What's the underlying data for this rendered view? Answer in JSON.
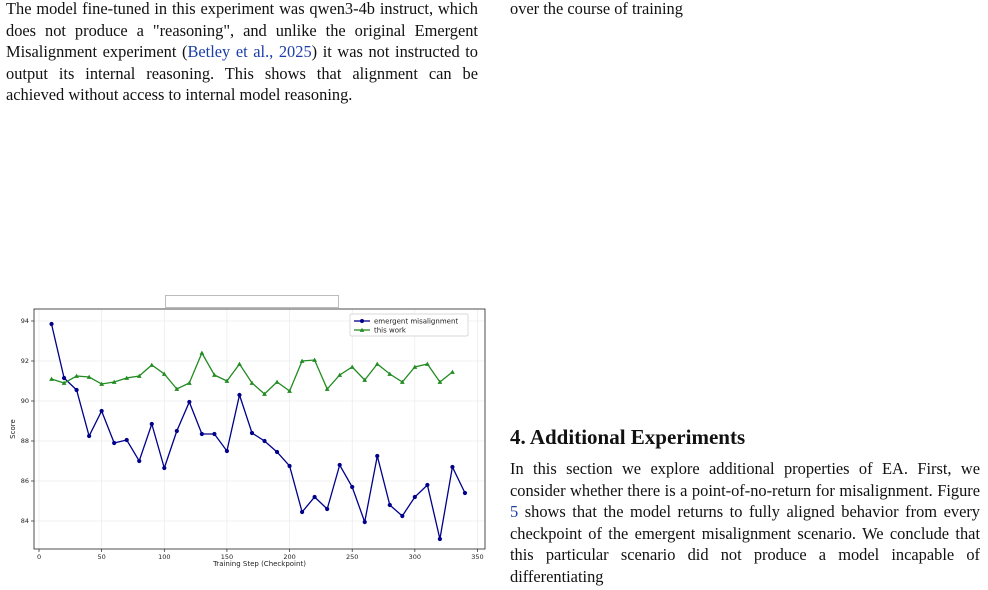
{
  "left_paragraph": {
    "part1": "The model fine-tuned in this experiment was qwen3-4b instruct, which does not produce a \"reasoning\", and unlike the original Emergent Misalignment experiment (",
    "citation": "Betley et al., 2025",
    "part2": ") it was not instructed to output its internal reasoning. This shows that alignment can be achieved without access to internal model reasoning."
  },
  "right_fragment": "over the course of training",
  "section": {
    "title": "4. Additional Experiments",
    "paragraph_part1": "In this section we explore additional properties of EA. First, we consider whether there is a point-of-no-return for misalignment. Figure ",
    "figure_ref": "5",
    "paragraph_part2": " shows that the model returns to fully aligned behavior from every checkpoint of the emergent misalignment scenario. We conclude that this particular scenario did not produce a model incapable of differentiating"
  },
  "caption_fragment": "",
  "chart_data": {
    "type": "line",
    "title": "",
    "xlabel": "Training Step (Checkpoint)",
    "ylabel": "Score",
    "xlim": [
      -4,
      356
    ],
    "ylim": [
      82.6,
      94.6
    ],
    "xticks": [
      0,
      50,
      100,
      150,
      200,
      250,
      300,
      350
    ],
    "yticks": [
      84,
      86,
      88,
      90,
      92,
      94
    ],
    "grid": true,
    "legend_position": "top-right",
    "series": [
      {
        "name": "emergent misalignment",
        "color": "#00008b",
        "marker": "circle",
        "x": [
          10,
          20,
          30,
          40,
          50,
          60,
          70,
          80,
          90,
          100,
          110,
          120,
          130,
          140,
          150,
          160,
          170,
          180,
          190,
          200,
          210,
          220,
          230,
          240,
          250,
          260,
          270,
          280,
          290,
          300,
          310,
          320,
          330,
          340
        ],
        "y": [
          93.85,
          91.15,
          90.55,
          88.25,
          89.5,
          87.9,
          88.05,
          87.0,
          88.85,
          86.65,
          88.5,
          89.95,
          88.35,
          88.35,
          87.5,
          90.3,
          88.4,
          88.0,
          87.45,
          86.75,
          84.45,
          85.2,
          84.6,
          86.8,
          85.7,
          83.95,
          87.25,
          84.8,
          84.25,
          85.2,
          85.8,
          83.1,
          86.7,
          85.4
        ]
      },
      {
        "name": "this work",
        "color": "#228b22",
        "marker": "triangle",
        "x": [
          10,
          20,
          30,
          40,
          50,
          60,
          70,
          80,
          90,
          100,
          110,
          120,
          130,
          140,
          150,
          160,
          170,
          180,
          190,
          200,
          210,
          220,
          230,
          240,
          250,
          260,
          270,
          280,
          290,
          300,
          310,
          320,
          330
        ],
        "y": [
          91.1,
          90.9,
          91.25,
          91.2,
          90.85,
          90.95,
          91.15,
          91.25,
          91.8,
          91.35,
          90.6,
          90.9,
          92.4,
          91.3,
          91.0,
          91.85,
          90.9,
          90.35,
          90.95,
          90.5,
          92.0,
          92.05,
          90.6,
          91.3,
          91.7,
          91.05,
          91.85,
          91.35,
          90.95,
          91.7,
          91.85,
          90.95,
          91.45
        ]
      }
    ]
  }
}
